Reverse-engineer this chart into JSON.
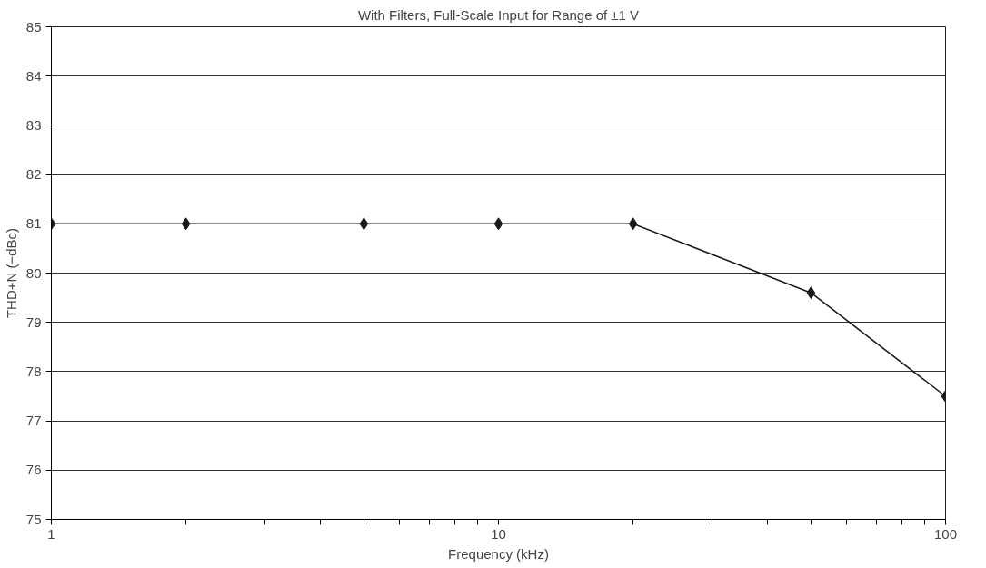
{
  "chart_data": {
    "type": "line",
    "title": "With Filters, Full-Scale Input for Range of ±1 V",
    "xlabel": "Frequency (kHz)",
    "ylabel": "THD+N (−dBc)",
    "log": "x",
    "x": [
      1,
      2,
      5,
      10,
      20,
      50,
      100
    ],
    "series": [
      {
        "color": "#1a1a1a",
        "values": [
          81,
          81,
          81,
          81,
          81,
          79.6,
          77.5
        ]
      }
    ],
    "xlim": [
      1,
      100
    ],
    "ylim": [
      75,
      85
    ],
    "xticks": [
      1,
      {
        "value": 2,
        "label": null
      },
      {
        "value": 3,
        "label": null
      },
      {
        "value": 4,
        "label": null
      },
      {
        "value": 5,
        "label": null
      },
      {
        "value": 6,
        "label": null
      },
      {
        "value": 7,
        "label": null
      },
      {
        "value": 8,
        "label": null
      },
      {
        "value": 9,
        "label": null
      },
      10,
      {
        "value": 20,
        "label": null
      },
      {
        "value": 30,
        "label": null
      },
      {
        "value": 40,
        "label": null
      },
      {
        "value": 50,
        "label": null
      },
      {
        "value": 60,
        "label": null
      },
      {
        "value": 70,
        "label": null
      },
      {
        "value": 80,
        "label": null
      },
      {
        "value": 90,
        "label": null
      },
      100
    ],
    "yticks": [
      75,
      76,
      77,
      78,
      79,
      80,
      81,
      82,
      83,
      84,
      85
    ],
    "grid": "y",
    "marker": "diamond",
    "line_style": "solid"
  }
}
